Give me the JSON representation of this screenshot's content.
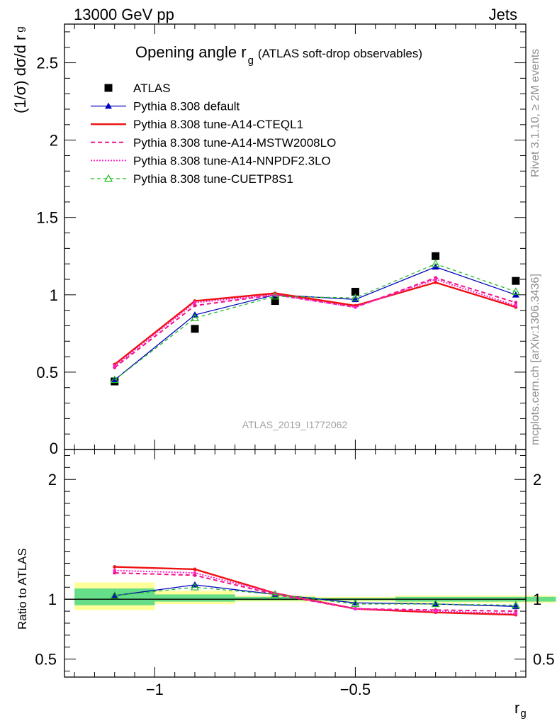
{
  "header": {
    "left": "13000 GeV pp",
    "right": "Jets"
  },
  "side_text": {
    "rivet": "Rivet 3.1.10, ≥ 2M events",
    "mcplots": "mcplots.cern.ch [arXiv:1306.3436]"
  },
  "analysis_label": "ATLAS_2019_I1772062",
  "colors": {
    "atlas": "#000000",
    "default": "#0000bf",
    "cteql1": "#ee1111",
    "mstw": "#ee1188",
    "nnpdf": "#ff22cc",
    "cuetp": "#22bb22",
    "band_inner": "#66dd88",
    "band_outer": "#ffff99"
  },
  "chart_data": [
    {
      "type": "line",
      "title": "Opening angle r",
      "title_sub": "g",
      "title_note": "(ATLAS soft-drop observables)",
      "ylabel": "(1/σ) dσ/d r",
      "ylabel_sub": "g",
      "xlim": [
        -1.225,
        -0.075
      ],
      "ylim": [
        0,
        2.75
      ],
      "yticks": [
        0.5,
        1,
        1.5,
        2,
        2.5
      ],
      "ytick_labels": [
        "0.5",
        "1",
        "1.5",
        "2",
        "2.5"
      ],
      "y_zero_label": "0",
      "log_x": false,
      "x": [
        -1.1,
        -0.9,
        -0.7,
        -0.5,
        -0.3,
        -0.1
      ],
      "series": [
        {
          "key": "atlas",
          "name": "ATLAS",
          "values": [
            0.44,
            0.78,
            0.96,
            1.02,
            1.25,
            1.09
          ]
        },
        {
          "key": "default",
          "name": "Pythia 8.308 default",
          "values": [
            0.45,
            0.87,
            1.0,
            0.97,
            1.18,
            1.0
          ]
        },
        {
          "key": "cteql1",
          "name": "Pythia 8.308 tune-A14-CTEQL1",
          "values": [
            0.55,
            0.96,
            1.01,
            0.93,
            1.08,
            0.92
          ]
        },
        {
          "key": "mstw",
          "name": "Pythia 8.308 tune-A14-MSTW2008LO",
          "values": [
            0.53,
            0.93,
            1.0,
            0.92,
            1.11,
            0.95
          ]
        },
        {
          "key": "nnpdf",
          "name": "Pythia 8.308 tune-A14-NNPDF2.3LO",
          "values": [
            0.54,
            0.95,
            1.0,
            0.92,
            1.1,
            0.93
          ]
        },
        {
          "key": "cuetp",
          "name": "Pythia 8.308 tune-CUETP8S1",
          "values": [
            0.45,
            0.85,
            0.99,
            0.98,
            1.2,
            1.02
          ]
        }
      ]
    },
    {
      "type": "line",
      "ylabel": "Ratio to ATLAS",
      "xlabel": "r",
      "xlabel_sub": "g",
      "xlim": [
        -1.225,
        -0.075
      ],
      "ylim": [
        0.35,
        2.25
      ],
      "yticks": [
        0.5,
        1,
        2
      ],
      "ytick_labels": [
        "0.5",
        "1",
        "2"
      ],
      "xticks": [
        -1,
        -0.5
      ],
      "xtick_labels": [
        "−1",
        "−0.5"
      ],
      "x": [
        -1.1,
        -0.9,
        -0.7,
        -0.5,
        -0.3,
        -0.1
      ],
      "bands": {
        "edges": [
          -1.2,
          -1.0,
          -0.8,
          -0.6,
          -0.4,
          -0.2,
          -0.0
        ],
        "outer": [
          [
            0.91,
            1.14
          ],
          [
            0.96,
            1.07
          ],
          [
            0.98,
            1.03
          ],
          [
            0.98,
            1.02
          ],
          [
            0.97,
            1.03
          ],
          [
            0.97,
            1.03
          ]
        ],
        "inner": [
          [
            0.95,
            1.09
          ],
          [
            0.98,
            1.04
          ],
          [
            0.99,
            1.02
          ],
          [
            0.99,
            1.01
          ],
          [
            0.98,
            1.02
          ],
          [
            0.98,
            1.02
          ]
        ]
      },
      "series": [
        {
          "key": "default",
          "values": [
            1.03,
            1.12,
            1.04,
            0.97,
            0.96,
            0.94
          ]
        },
        {
          "key": "cteql1",
          "values": [
            1.27,
            1.25,
            1.05,
            0.92,
            0.89,
            0.87
          ]
        },
        {
          "key": "mstw",
          "values": [
            1.22,
            1.2,
            1.04,
            0.92,
            0.91,
            0.9
          ]
        },
        {
          "key": "nnpdf",
          "values": [
            1.24,
            1.22,
            1.05,
            0.92,
            0.9,
            0.88
          ]
        },
        {
          "key": "cuetp",
          "values": [
            1.03,
            1.1,
            1.04,
            0.96,
            0.96,
            0.95
          ]
        }
      ]
    }
  ]
}
